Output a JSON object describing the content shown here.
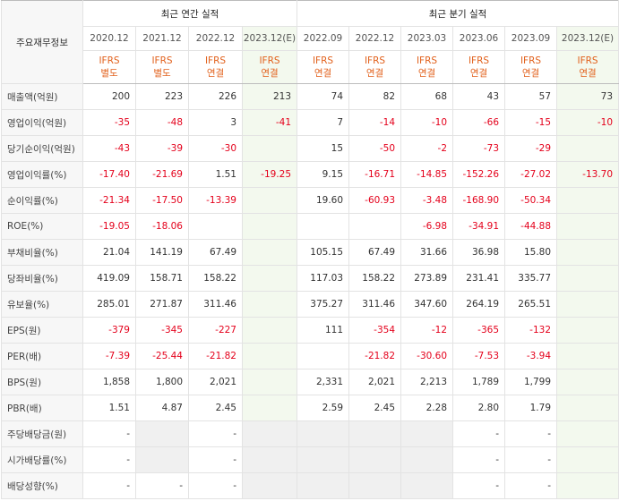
{
  "table": {
    "corner": "주요재무정보",
    "groups": [
      "최근 연간 실적",
      "최근 분기 실적"
    ],
    "periods": [
      "2020.12",
      "2021.12",
      "2022.12",
      "2023.12(E)",
      "2022.09",
      "2022.12",
      "2023.03",
      "2023.06",
      "2023.09",
      "2023.12(E)"
    ],
    "standards": [
      {
        "standard": "IFRS",
        "basis": "별도"
      },
      {
        "standard": "IFRS",
        "basis": "별도"
      },
      {
        "standard": "IFRS",
        "basis": "연결"
      },
      {
        "standard": "IFRS",
        "basis": "연결"
      },
      {
        "standard": "IFRS",
        "basis": "연결"
      },
      {
        "standard": "IFRS",
        "basis": "연결"
      },
      {
        "standard": "IFRS",
        "basis": "연결"
      },
      {
        "standard": "IFRS",
        "basis": "연결"
      },
      {
        "standard": "IFRS",
        "basis": "연결"
      },
      {
        "standard": "IFRS",
        "basis": "연결"
      }
    ],
    "rows": [
      {
        "label": "매출액(억원)",
        "cells": [
          "200",
          "223",
          "226",
          "213",
          "74",
          "82",
          "68",
          "43",
          "57",
          "73"
        ]
      },
      {
        "label": "영업이익(억원)",
        "cells": [
          "-35",
          "-48",
          "3",
          "-41",
          "7",
          "-14",
          "-10",
          "-66",
          "-15",
          "-10"
        ]
      },
      {
        "label": "당기순이익(억원)",
        "cells": [
          "-43",
          "-39",
          "-30",
          null,
          "15",
          "-50",
          "-2",
          "-73",
          "-29",
          null
        ]
      },
      {
        "label": "영업이익률(%)",
        "cells": [
          "-17.40",
          "-21.69",
          "1.51",
          "-19.25",
          "9.15",
          "-16.71",
          "-14.85",
          "-152.26",
          "-27.02",
          "-13.70"
        ]
      },
      {
        "label": "순이익률(%)",
        "cells": [
          "-21.34",
          "-17.50",
          "-13.39",
          null,
          "19.60",
          "-60.93",
          "-3.48",
          "-168.90",
          "-50.34",
          null
        ]
      },
      {
        "label": "ROE(%)",
        "cells": [
          "-19.05",
          "-18.06",
          null,
          null,
          null,
          null,
          "-6.98",
          "-34.91",
          "-44.88",
          null
        ]
      },
      {
        "label": "부채비율(%)",
        "cells": [
          "21.04",
          "141.19",
          "67.49",
          null,
          "105.15",
          "67.49",
          "31.66",
          "36.98",
          "15.80",
          null
        ]
      },
      {
        "label": "당좌비율(%)",
        "cells": [
          "419.09",
          "158.71",
          "158.22",
          null,
          "117.03",
          "158.22",
          "273.89",
          "231.41",
          "335.77",
          null
        ]
      },
      {
        "label": "유보율(%)",
        "cells": [
          "285.01",
          "271.87",
          "311.46",
          null,
          "375.27",
          "311.46",
          "347.60",
          "264.19",
          "265.51",
          null
        ]
      },
      {
        "label": "EPS(원)",
        "cells": [
          "-379",
          "-345",
          "-227",
          null,
          "111",
          "-354",
          "-12",
          "-365",
          "-132",
          null
        ]
      },
      {
        "label": "PER(배)",
        "cells": [
          "-7.39",
          "-25.44",
          "-21.82",
          null,
          null,
          "-21.82",
          "-30.60",
          "-7.53",
          "-3.94",
          null
        ]
      },
      {
        "label": "BPS(원)",
        "cells": [
          "1,858",
          "1,800",
          "2,021",
          null,
          "2,331",
          "2,021",
          "2,213",
          "1,789",
          "1,799",
          null
        ]
      },
      {
        "label": "PBR(배)",
        "cells": [
          "1.51",
          "4.87",
          "2.45",
          null,
          "2.59",
          "2.45",
          "2.28",
          "2.80",
          "1.79",
          null
        ]
      },
      {
        "label": "주당배당금(원)",
        "cells": [
          "-",
          null,
          "-",
          null,
          null,
          null,
          null,
          "-",
          "-",
          null
        ]
      },
      {
        "label": "시가배당률(%)",
        "cells": [
          "-",
          null,
          "-",
          null,
          null,
          null,
          null,
          "-",
          "-",
          null
        ]
      },
      {
        "label": "배당성향(%)",
        "cells": [
          "-",
          "-",
          "-",
          null,
          null,
          null,
          null,
          "-",
          "-",
          null
        ]
      }
    ]
  }
}
